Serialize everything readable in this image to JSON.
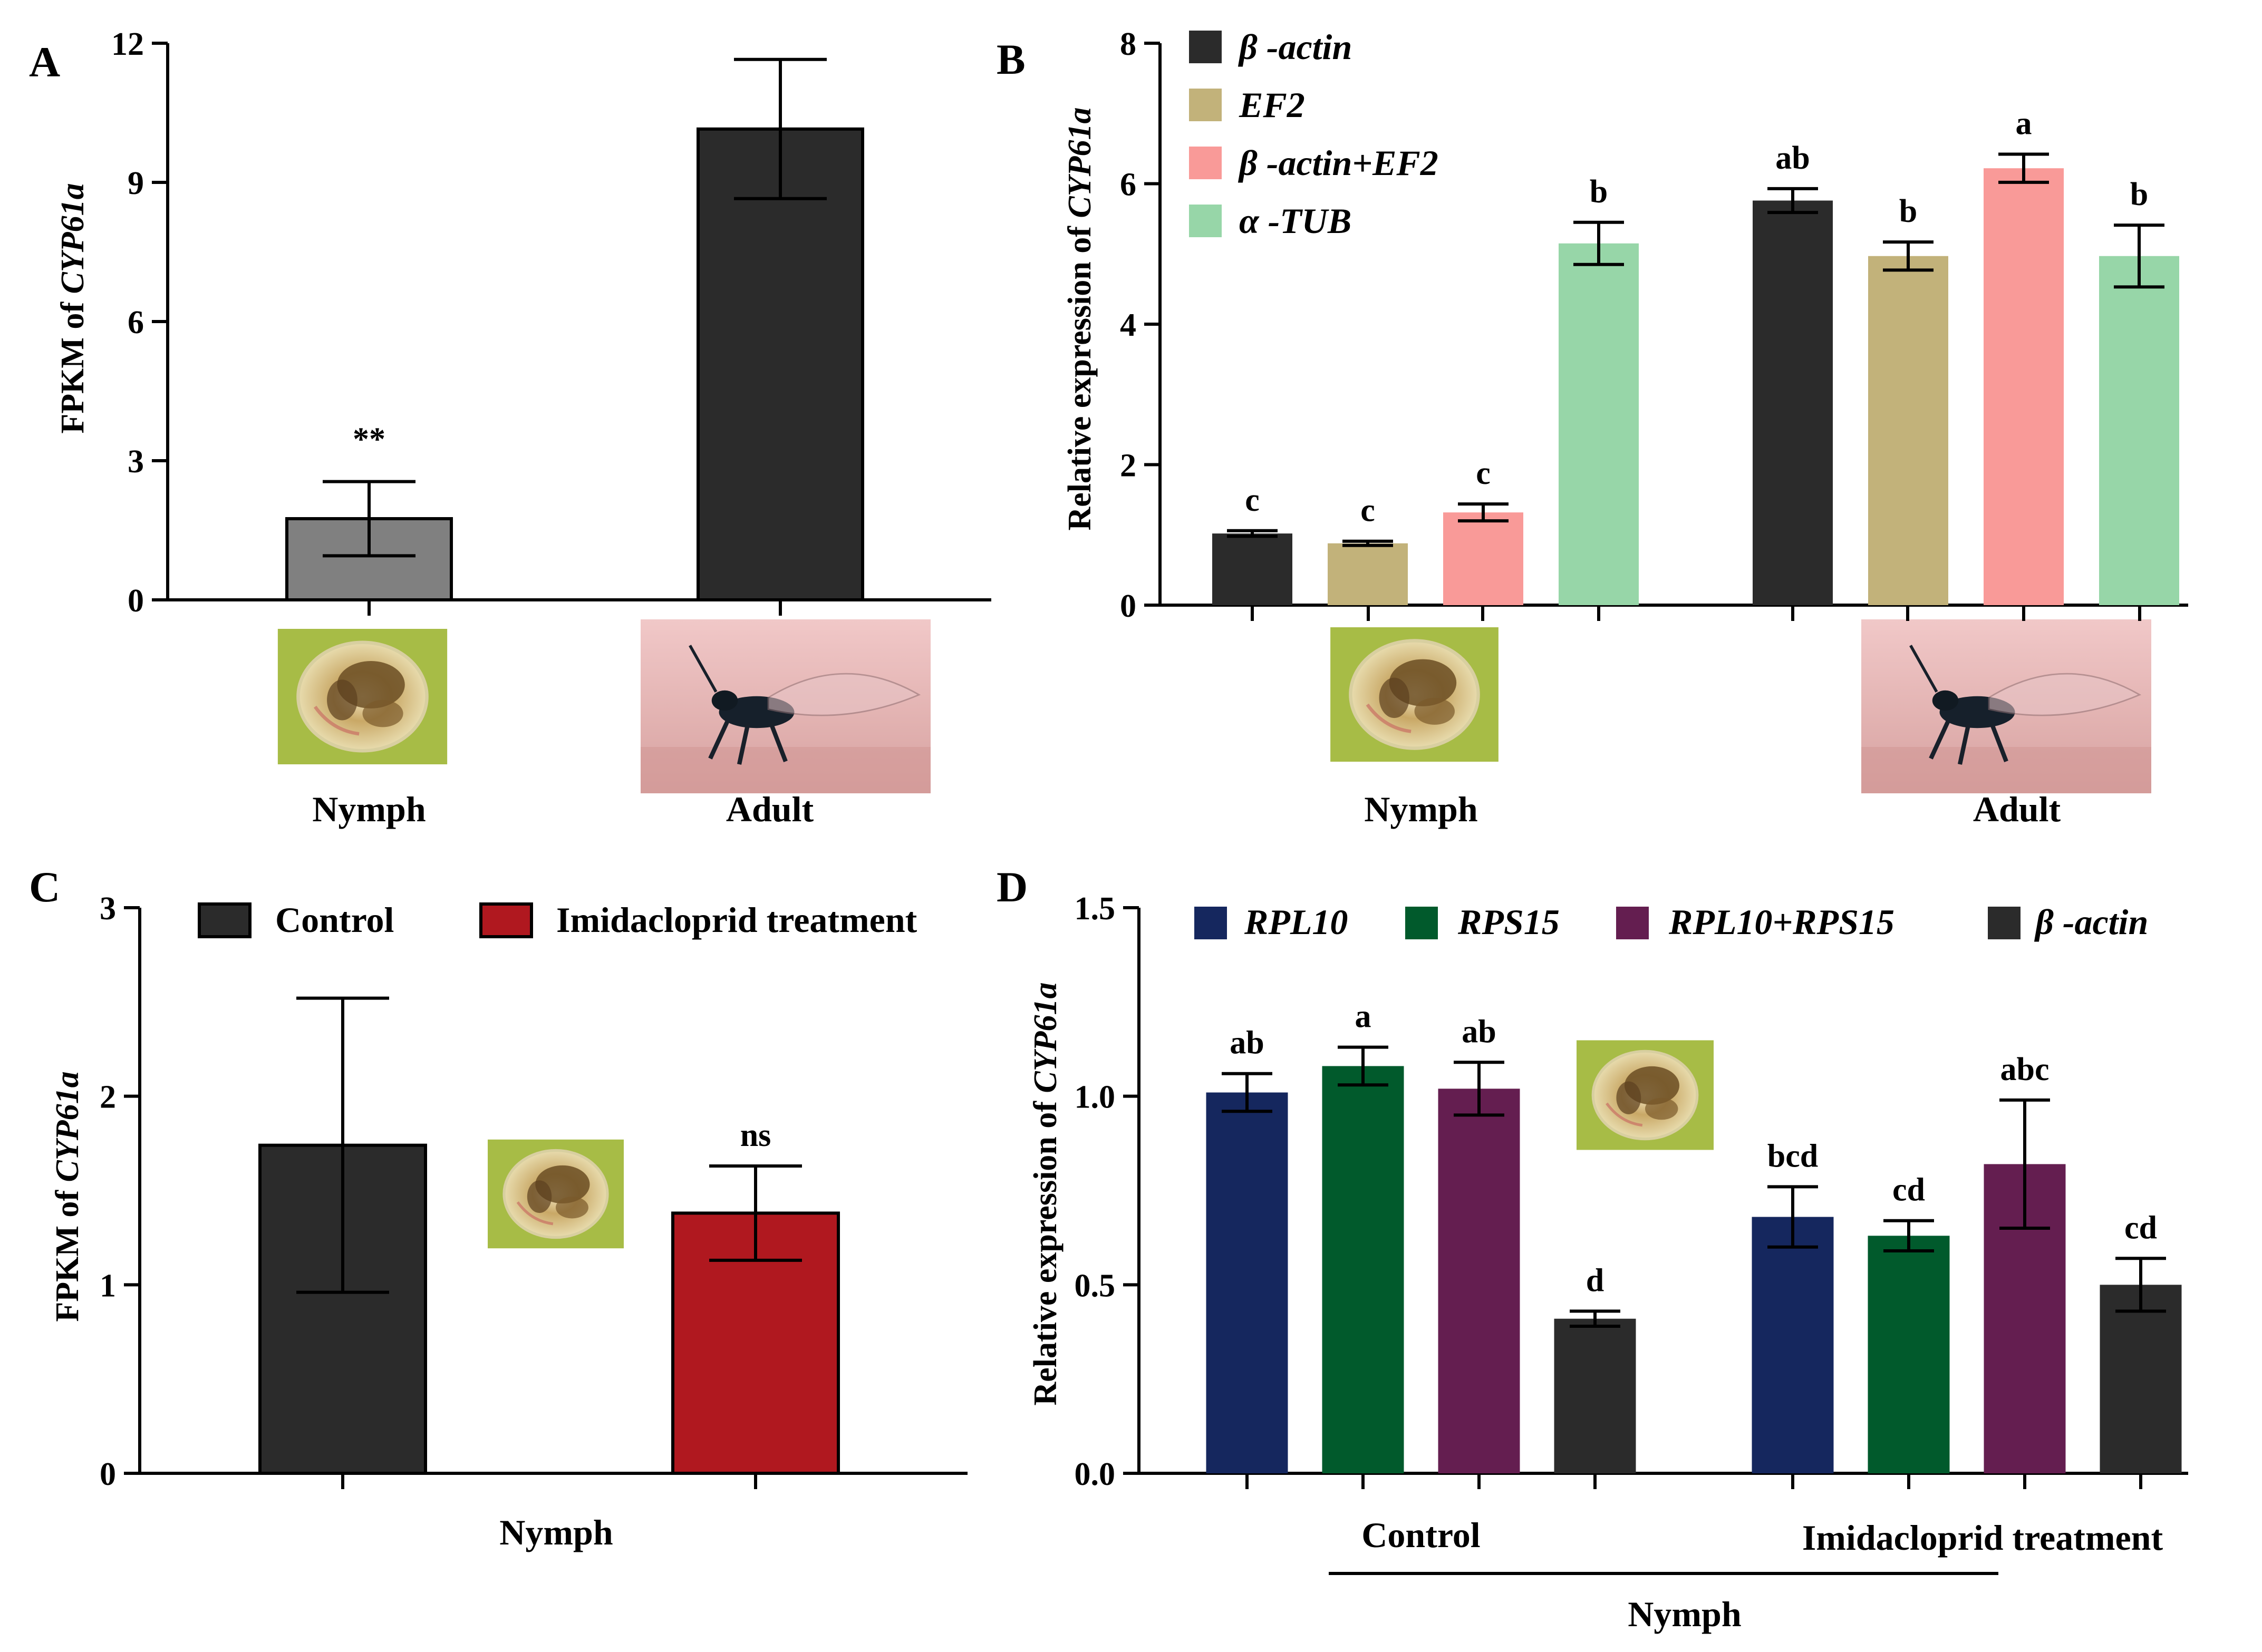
{
  "panels": {
    "A": {
      "label": "A",
      "ylabel_prefix": "FPKM of ",
      "ylabel_gene": "CYP61a",
      "chart_data": {
        "type": "bar",
        "categories": [
          "Nymph",
          "Adult"
        ],
        "values": [
          1.75,
          10.15
        ],
        "errors": [
          0.8,
          1.5
        ],
        "significance": [
          "**",
          ""
        ],
        "colors": [
          "#808080",
          "#2b2b2b"
        ],
        "ylim": [
          0,
          12
        ],
        "yticks": [
          "0",
          "3",
          "6",
          "9",
          "12"
        ],
        "ytick_values": [
          0,
          3,
          6,
          9,
          12
        ]
      }
    },
    "B": {
      "label": "B",
      "ylabel_prefix": "Relative expression of ",
      "ylabel_gene": "CYP61a",
      "legend": [
        "β -actin",
        "EF2",
        "β -actin+EF2",
        "α -TUB"
      ],
      "chart_data": {
        "type": "bar",
        "categories": [
          "Nymph",
          "Adult"
        ],
        "series": [
          {
            "name": "β -actin",
            "color": "#2b2b2b",
            "values": [
              1.02,
              5.76
            ],
            "errors": [
              0.04,
              0.17
            ],
            "letters": [
              "c",
              "ab"
            ]
          },
          {
            "name": "EF2",
            "color": "#c2b27a",
            "values": [
              0.88,
              4.97
            ],
            "errors": [
              0.03,
              0.2
            ],
            "letters": [
              "c",
              "b"
            ]
          },
          {
            "name": "β -actin+EF2",
            "color": "#f99a98",
            "values": [
              1.32,
              6.22
            ],
            "errors": [
              0.12,
              0.2
            ],
            "letters": [
              "c",
              "a"
            ]
          },
          {
            "name": "α -TUB",
            "color": "#97d6a8",
            "values": [
              5.15,
              4.97
            ],
            "errors": [
              0.3,
              0.44
            ],
            "letters": [
              "b",
              "b"
            ]
          }
        ],
        "ylim": [
          0,
          8
        ],
        "yticks": [
          "0",
          "2",
          "4",
          "6",
          "8"
        ],
        "ytick_values": [
          0,
          2,
          4,
          6,
          8
        ]
      }
    },
    "C": {
      "label": "C",
      "ylabel_prefix": "FPKM of ",
      "ylabel_gene": "CYP61a",
      "legend": [
        "Control",
        "Imidacloprid treatment"
      ],
      "xlabel": "Nymph",
      "chart_data": {
        "type": "bar",
        "categories": [
          "Control",
          "Imidacloprid treatment"
        ],
        "values": [
          1.74,
          1.38
        ],
        "errors": [
          0.78,
          0.25
        ],
        "significance": [
          "",
          "ns"
        ],
        "colors": [
          "#2b2b2b",
          "#b0181f"
        ],
        "ylim": [
          0,
          3
        ],
        "yticks": [
          "0",
          "1",
          "2",
          "3"
        ],
        "ytick_values": [
          0,
          1,
          2,
          3
        ]
      }
    },
    "D": {
      "label": "D",
      "ylabel_prefix": "Relative expression of ",
      "ylabel_gene": "CYP61a",
      "legend": [
        "RPL10",
        "RPS15",
        "RPL10+RPS15",
        "β -actin"
      ],
      "group_labels": [
        "Control",
        "Imidacloprid treatment"
      ],
      "xlabel": "Nymph",
      "chart_data": {
        "type": "bar",
        "categories": [
          "Control",
          "Imidacloprid treatment"
        ],
        "series": [
          {
            "name": "RPL10",
            "color": "#15275e",
            "values": [
              1.01,
              0.68
            ],
            "errors": [
              0.05,
              0.08
            ],
            "letters": [
              "ab",
              "bcd"
            ]
          },
          {
            "name": "RPS15",
            "color": "#015a2c",
            "values": [
              1.08,
              0.63
            ],
            "errors": [
              0.05,
              0.04
            ],
            "letters": [
              "a",
              "cd"
            ]
          },
          {
            "name": "RPL10+RPS15",
            "color": "#641e50",
            "values": [
              1.02,
              0.82
            ],
            "errors": [
              0.07,
              0.17
            ],
            "letters": [
              "ab",
              "abc"
            ]
          },
          {
            "name": "β -actin",
            "color": "#2b2b2b",
            "values": [
              0.41,
              0.5
            ],
            "errors": [
              0.02,
              0.07
            ],
            "letters": [
              "d",
              "cd"
            ]
          }
        ],
        "ylim": [
          0,
          1.5
        ],
        "yticks": [
          "0.0",
          "0.5",
          "1.0",
          "1.5"
        ],
        "ytick_values": [
          0,
          0.5,
          1.0,
          1.5
        ]
      }
    }
  }
}
